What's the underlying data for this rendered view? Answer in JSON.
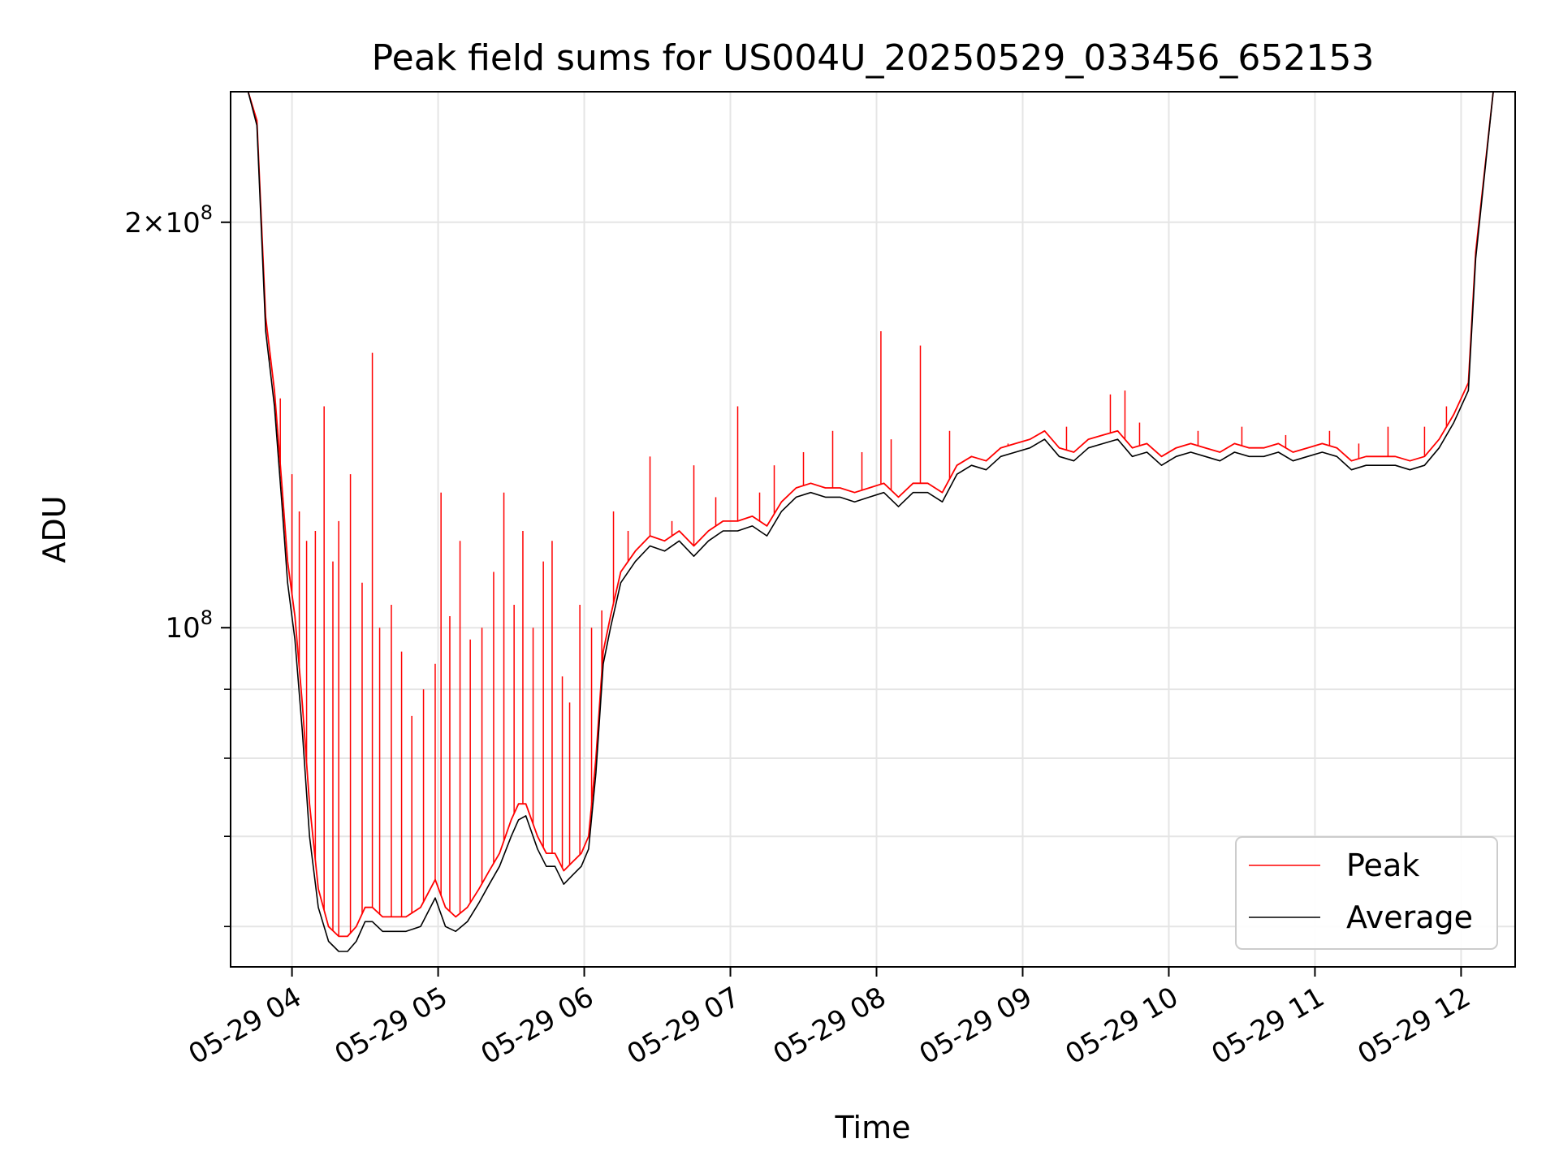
{
  "chart_data": {
    "type": "line",
    "title": "Peak field sums for US004U_20250529_033456_652153",
    "xlabel": "Time",
    "ylabel": "ADU",
    "yscale": "log",
    "ylim": [
      56000000,
      250000000
    ],
    "grid": true,
    "legend_position": "lower-right",
    "x_tick_labels": [
      "05-29 04",
      "05-29 05",
      "05-29 06",
      "05-29 07",
      "05-29 08",
      "05-29 09",
      "05-29 10",
      "05-29 11",
      "05-29 12"
    ],
    "y_tick_labels": [
      {
        "value": 200000000,
        "mantissa": "2",
        "times": "×",
        "base": "10",
        "exp": "8"
      },
      {
        "value": 100000000,
        "mantissa": "",
        "times": "",
        "base": "10",
        "exp": "8"
      }
    ],
    "colors": {
      "peak": "#ff0000",
      "average": "#000000"
    },
    "series": [
      {
        "name": "Peak",
        "color": "#ff0000",
        "x_hours": [
          3.58,
          3.7,
          3.76,
          3.82,
          3.88,
          3.93,
          3.97,
          4.02,
          4.07,
          4.12,
          4.18,
          4.25,
          4.32,
          4.38,
          4.44,
          4.5,
          4.55,
          4.62,
          4.7,
          4.78,
          4.88,
          4.98,
          5.05,
          5.12,
          5.2,
          5.28,
          5.35,
          5.42,
          5.5,
          5.55,
          5.6,
          5.68,
          5.74,
          5.8,
          5.86,
          5.92,
          5.98,
          6.03,
          6.08,
          6.13,
          6.18,
          6.25,
          6.35,
          6.45,
          6.55,
          6.65,
          6.75,
          6.85,
          6.95,
          7.05,
          7.15,
          7.25,
          7.35,
          7.45,
          7.55,
          7.65,
          7.75,
          7.85,
          7.95,
          8.05,
          8.15,
          8.25,
          8.35,
          8.45,
          8.55,
          8.65,
          8.75,
          8.85,
          8.95,
          9.05,
          9.15,
          9.25,
          9.35,
          9.45,
          9.55,
          9.65,
          9.75,
          9.85,
          9.95,
          10.05,
          10.15,
          10.25,
          10.35,
          10.45,
          10.55,
          10.65,
          10.75,
          10.85,
          10.95,
          11.05,
          11.15,
          11.25,
          11.35,
          11.45,
          11.55,
          11.65,
          11.75,
          11.85,
          11.95,
          12.05,
          12.1,
          12.22
        ],
        "y_millions": [
          250,
          250,
          238,
          170,
          150,
          128,
          112,
          102,
          88,
          74,
          64,
          60,
          59,
          59,
          60,
          62,
          62,
          61,
          61,
          61,
          62,
          65,
          62,
          61,
          62,
          64,
          66,
          68,
          72,
          74,
          74,
          70,
          68,
          68,
          66,
          67,
          68,
          70,
          80,
          96,
          102,
          110,
          114,
          117,
          116,
          118,
          115,
          118,
          120,
          120,
          121,
          119,
          124,
          127,
          128,
          127,
          127,
          126,
          127,
          128,
          125,
          128,
          128,
          126,
          132,
          134,
          133,
          136,
          137,
          138,
          140,
          136,
          135,
          138,
          139,
          140,
          136,
          137,
          134,
          136,
          137,
          136,
          135,
          137,
          136,
          136,
          137,
          135,
          136,
          137,
          136,
          133,
          134,
          134,
          134,
          133,
          134,
          138,
          144,
          152,
          190,
          250
        ]
      },
      {
        "name": "Average",
        "color": "#000000",
        "x_hours": [
          3.58,
          3.7,
          3.76,
          3.82,
          3.88,
          3.93,
          3.97,
          4.02,
          4.07,
          4.12,
          4.18,
          4.25,
          4.32,
          4.38,
          4.44,
          4.5,
          4.55,
          4.62,
          4.7,
          4.78,
          4.88,
          4.98,
          5.05,
          5.12,
          5.2,
          5.28,
          5.35,
          5.42,
          5.5,
          5.55,
          5.6,
          5.68,
          5.74,
          5.8,
          5.86,
          5.92,
          5.98,
          6.03,
          6.08,
          6.13,
          6.18,
          6.25,
          6.35,
          6.45,
          6.55,
          6.65,
          6.75,
          6.85,
          6.95,
          7.05,
          7.15,
          7.25,
          7.35,
          7.45,
          7.55,
          7.65,
          7.75,
          7.85,
          7.95,
          8.05,
          8.15,
          8.25,
          8.35,
          8.45,
          8.55,
          8.65,
          8.75,
          8.85,
          8.95,
          9.05,
          9.15,
          9.25,
          9.35,
          9.45,
          9.55,
          9.65,
          9.75,
          9.85,
          9.95,
          10.05,
          10.15,
          10.25,
          10.35,
          10.45,
          10.55,
          10.65,
          10.75,
          10.85,
          10.95,
          11.05,
          11.15,
          11.25,
          11.35,
          11.45,
          11.55,
          11.65,
          11.75,
          11.85,
          11.95,
          12.05,
          12.1,
          12.22
        ],
        "y_millions": [
          250,
          250,
          236,
          166,
          146,
          124,
          108,
          98,
          84,
          70,
          62,
          58.5,
          57.5,
          57.5,
          58.5,
          60.5,
          60.5,
          59.5,
          59.5,
          59.5,
          60,
          63,
          60,
          59.5,
          60.5,
          62.5,
          64.5,
          66.5,
          70,
          72,
          72.5,
          68.5,
          66.5,
          66.5,
          64.5,
          65.5,
          66.5,
          68.5,
          78,
          94,
          100,
          108,
          112,
          115,
          114,
          116,
          113,
          116,
          118,
          118,
          119,
          117,
          122,
          125,
          126,
          125,
          125,
          124,
          125,
          126,
          123,
          126,
          126,
          124,
          130,
          132,
          131,
          134,
          135,
          136,
          138,
          134,
          133,
          136,
          137,
          138,
          134,
          135,
          132,
          134,
          135,
          134,
          133,
          135,
          134,
          134,
          135,
          133,
          134,
          135,
          134,
          131,
          132,
          132,
          132,
          131,
          132,
          136,
          142,
          150,
          188,
          250
        ]
      }
    ],
    "spikes": {
      "name": "Peak",
      "x_hours": [
        3.85,
        3.92,
        4.0,
        4.05,
        4.1,
        4.16,
        4.22,
        4.28,
        4.32,
        4.4,
        4.48,
        4.55,
        4.6,
        4.68,
        4.75,
        4.82,
        4.9,
        4.98,
        5.02,
        5.08,
        5.15,
        5.22,
        5.3,
        5.38,
        5.45,
        5.52,
        5.58,
        5.65,
        5.72,
        5.78,
        5.85,
        5.9,
        5.97,
        6.05,
        6.12,
        6.2,
        6.3,
        6.45,
        6.6,
        6.75,
        6.9,
        7.05,
        7.2,
        7.3,
        7.5,
        7.7,
        7.9,
        8.03,
        8.1,
        8.3,
        8.5,
        8.9,
        9.3,
        9.6,
        9.7,
        9.8,
        10.2,
        10.5,
        10.8,
        11.1,
        11.3,
        11.5,
        11.75,
        11.9
      ],
      "y_millions": [
        158,
        148,
        130,
        122,
        116,
        118,
        146,
        112,
        120,
        130,
        108,
        160,
        100,
        104,
        96,
        86,
        90,
        94,
        126,
        102,
        116,
        98,
        100,
        110,
        126,
        104,
        118,
        100,
        112,
        116,
        92,
        88,
        104,
        100,
        103,
        122,
        118,
        134,
        120,
        132,
        125,
        146,
        126,
        132,
        135,
        140,
        135,
        166,
        138,
        162,
        140,
        137,
        141,
        149,
        150,
        142,
        140,
        141,
        139,
        140,
        137,
        141,
        141,
        146
      ]
    }
  }
}
